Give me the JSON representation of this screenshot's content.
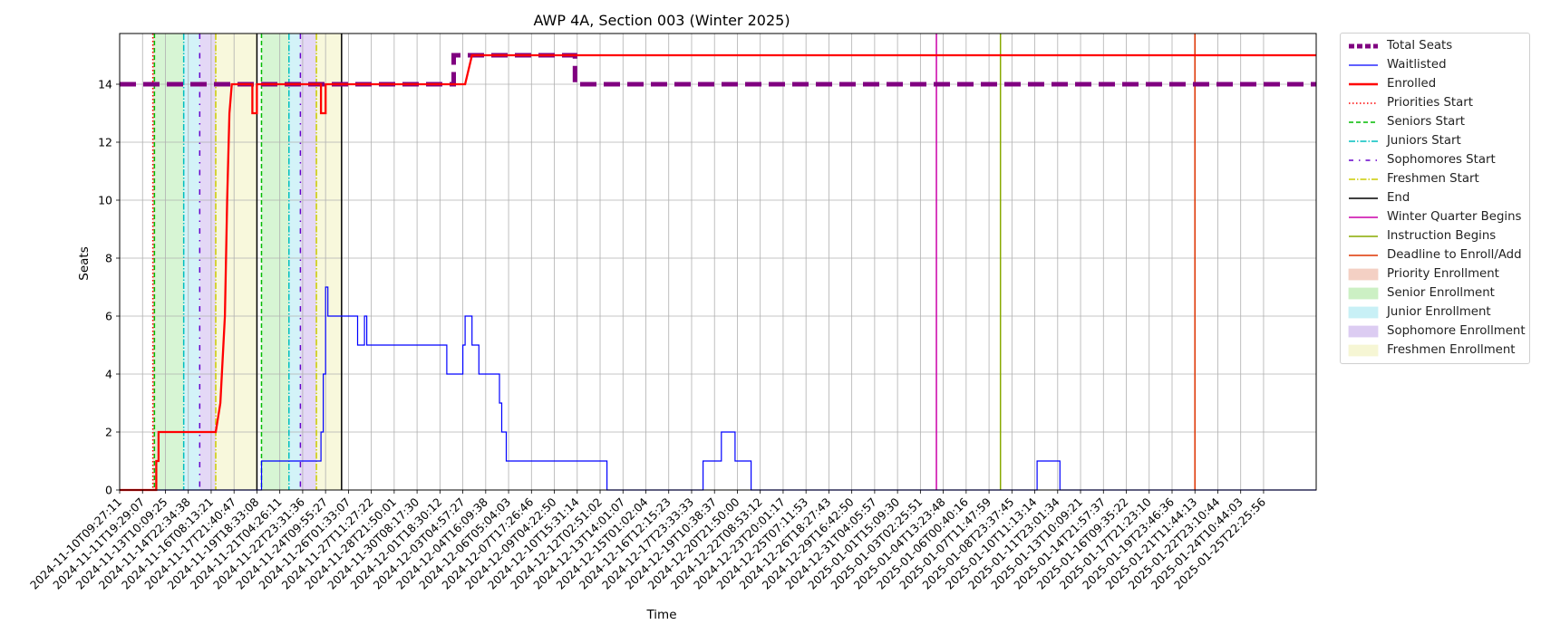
{
  "chart_data": {
    "type": "line",
    "title": "AWP 4A, Section 003 (Winter 2025)",
    "xlabel": "Time",
    "ylabel": "Seats",
    "ylim": [
      0,
      15.75
    ],
    "yticks": [
      0,
      2,
      4,
      6,
      8,
      10,
      12,
      14
    ],
    "grid": true,
    "legend_position": "outside-right",
    "x_ticks": [
      "2024-11-10T09:27:11",
      "2024-11-11T19:29:07",
      "2024-11-13T10:09:25",
      "2024-11-14T22:34:38",
      "2024-11-16T08:13:21",
      "2024-11-17T21:40:47",
      "2024-11-19T18:33:08",
      "2024-11-21T04:26:11",
      "2024-11-22T23:31:36",
      "2024-11-24T09:55:27",
      "2024-11-26T01:33:07",
      "2024-11-27T11:27:22",
      "2024-11-28T21:50:01",
      "2024-11-30T08:17:30",
      "2024-12-01T18:30:12",
      "2024-12-03T04:57:27",
      "2024-12-04T16:09:38",
      "2024-12-06T05:04:03",
      "2024-12-07T17:26:46",
      "2024-12-09T04:22:50",
      "2024-12-10T15:31:14",
      "2024-12-12T02:51:02",
      "2024-12-13T14:01:07",
      "2024-12-15T01:02:04",
      "2024-12-16T12:15:23",
      "2024-12-17T23:33:33",
      "2024-12-19T10:38:37",
      "2024-12-20T21:50:00",
      "2024-12-22T08:53:12",
      "2024-12-23T20:01:17",
      "2024-12-25T07:11:53",
      "2024-12-26T18:27:43",
      "2024-12-29T16:42:50",
      "2024-12-31T04:05:57",
      "2025-01-01T15:09:30",
      "2025-01-03T02:25:51",
      "2025-01-04T13:23:48",
      "2025-01-06T00:40:16",
      "2025-01-07T11:47:59",
      "2025-01-08T23:37:45",
      "2025-01-10T11:13:14",
      "2025-01-11T23:01:34",
      "2025-01-13T10:09:21",
      "2025-01-14T21:57:37",
      "2025-01-16T09:35:22",
      "2025-01-17T21:23:10",
      "2025-01-19T23:46:36",
      "2025-01-21T11:44:13",
      "2025-01-22T23:10:44",
      "2025-01-24T10:44:03",
      "2025-01-25T22:25:56"
    ],
    "series": [
      {
        "name": "Total Seats",
        "color": "#800080",
        "style": "dashed-thick",
        "points": [
          [
            0,
            14
          ],
          [
            14.6,
            14
          ],
          [
            14.6,
            15
          ],
          [
            19.9,
            15
          ],
          [
            19.9,
            14
          ],
          [
            52.3,
            14
          ]
        ]
      },
      {
        "name": "Waitlisted",
        "color": "#0000ff",
        "style": "solid-thin",
        "points": [
          [
            0,
            0
          ],
          [
            6.2,
            0
          ],
          [
            6.2,
            1
          ],
          [
            8.8,
            1
          ],
          [
            8.8,
            2
          ],
          [
            8.9,
            2
          ],
          [
            8.9,
            4
          ],
          [
            9.0,
            4
          ],
          [
            9.0,
            7
          ],
          [
            9.1,
            7
          ],
          [
            9.1,
            6
          ],
          [
            10.4,
            6
          ],
          [
            10.4,
            5
          ],
          [
            10.7,
            5
          ],
          [
            10.7,
            6
          ],
          [
            10.8,
            6
          ],
          [
            10.8,
            5
          ],
          [
            14.3,
            5
          ],
          [
            14.3,
            4
          ],
          [
            15.0,
            4
          ],
          [
            15.0,
            5
          ],
          [
            15.1,
            5
          ],
          [
            15.1,
            6
          ],
          [
            15.4,
            6
          ],
          [
            15.4,
            5
          ],
          [
            15.7,
            5
          ],
          [
            15.7,
            4
          ],
          [
            16.6,
            4
          ],
          [
            16.6,
            3
          ],
          [
            16.7,
            3
          ],
          [
            16.7,
            2
          ],
          [
            16.9,
            2
          ],
          [
            16.9,
            1
          ],
          [
            21.3,
            1
          ],
          [
            21.3,
            0
          ],
          [
            25.5,
            0
          ],
          [
            25.5,
            1
          ],
          [
            26.3,
            1
          ],
          [
            26.3,
            2
          ],
          [
            26.9,
            2
          ],
          [
            26.9,
            1
          ],
          [
            27.6,
            1
          ],
          [
            27.6,
            0
          ],
          [
            40.1,
            0
          ],
          [
            40.1,
            1
          ],
          [
            41.1,
            1
          ],
          [
            41.1,
            0
          ],
          [
            52.3,
            0
          ]
        ]
      },
      {
        "name": "Enrolled",
        "color": "#ff0000",
        "style": "solid",
        "points": [
          [
            0,
            0
          ],
          [
            1.6,
            0
          ],
          [
            1.6,
            1
          ],
          [
            1.7,
            1
          ],
          [
            1.7,
            2
          ],
          [
            4.2,
            2
          ],
          [
            4.4,
            3
          ],
          [
            4.6,
            6
          ],
          [
            4.7,
            10
          ],
          [
            4.8,
            13
          ],
          [
            4.9,
            14
          ],
          [
            5.8,
            14
          ],
          [
            5.8,
            13
          ],
          [
            6.0,
            13
          ],
          [
            6.0,
            14
          ],
          [
            8.8,
            14
          ],
          [
            8.8,
            13
          ],
          [
            9.0,
            13
          ],
          [
            9.0,
            14
          ],
          [
            15.1,
            14
          ],
          [
            15.4,
            15
          ],
          [
            52.3,
            15
          ]
        ]
      }
    ],
    "vertical_markers": [
      {
        "name": "Priorities Start",
        "x": 1.45,
        "color": "#ff0000",
        "style": "dotted"
      },
      {
        "name": "Seniors Start",
        "x": 1.52,
        "color": "#00bb00",
        "style": "dashed"
      },
      {
        "name": "Juniors Start",
        "x": 2.8,
        "color": "#00bfbf",
        "style": "dashdot"
      },
      {
        "name": "Sophomores Start",
        "x": 3.5,
        "color": "#6600cc",
        "style": "dashdotsparse"
      },
      {
        "name": "Freshmen Start",
        "x": 4.2,
        "color": "#cccc00",
        "style": "dashdot"
      },
      {
        "name": "End",
        "x": 6.0,
        "color": "#000000",
        "style": "solid"
      },
      {
        "name": "Seniors Start",
        "x": 6.2,
        "color": "#00bb00",
        "style": "dashed"
      },
      {
        "name": "Juniors Start",
        "x": 7.4,
        "color": "#00bfbf",
        "style": "dashdot"
      },
      {
        "name": "Sophomores Start",
        "x": 7.9,
        "color": "#6600cc",
        "style": "dashdotsparse"
      },
      {
        "name": "Freshmen Start",
        "x": 8.6,
        "color": "#cccc00",
        "style": "dashdot"
      },
      {
        "name": "End",
        "x": 9.7,
        "color": "#000000",
        "style": "solid"
      },
      {
        "name": "Winter Quarter Begins",
        "x": 35.7,
        "color": "#cc00aa",
        "style": "solid"
      },
      {
        "name": "Instruction Begins",
        "x": 38.5,
        "color": "#88aa00",
        "style": "solid"
      },
      {
        "name": "Deadline to Enroll/Add",
        "x": 47.0,
        "color": "#dd3300",
        "style": "solid"
      }
    ],
    "shaded_regions": [
      {
        "name": "Priority Enrollment",
        "x0": 1.45,
        "x1": 1.52,
        "color": "#f4b8a8"
      },
      {
        "name": "Senior Enrollment",
        "x0": 1.52,
        "x1": 2.8,
        "color": "#b6ecb0"
      },
      {
        "name": "Junior Enrollment",
        "x0": 2.8,
        "x1": 3.5,
        "color": "#aeeaf2"
      },
      {
        "name": "Sophomore Enrollment",
        "x0": 3.5,
        "x1": 4.2,
        "color": "#cdb8ee"
      },
      {
        "name": "Freshmen Enrollment",
        "x0": 4.2,
        "x1": 6.0,
        "color": "#f3f3c0"
      },
      {
        "name": "Senior Enrollment",
        "x0": 6.2,
        "x1": 7.4,
        "color": "#b6ecb0"
      },
      {
        "name": "Junior Enrollment",
        "x0": 7.4,
        "x1": 7.9,
        "color": "#aeeaf2"
      },
      {
        "name": "Sophomore Enrollment",
        "x0": 7.9,
        "x1": 8.6,
        "color": "#cdb8ee"
      },
      {
        "name": "Freshmen Enrollment",
        "x0": 8.6,
        "x1": 9.7,
        "color": "#f3f3c0"
      }
    ],
    "legend": [
      {
        "label": "Total Seats",
        "kind": "line",
        "color": "#800080",
        "dash": "6,3",
        "width": 5
      },
      {
        "label": "Waitlisted",
        "kind": "line",
        "color": "#0000ff",
        "dash": "",
        "width": 1.2
      },
      {
        "label": "Enrolled",
        "kind": "line",
        "color": "#ff0000",
        "dash": "",
        "width": 2.5
      },
      {
        "label": "Priorities Start",
        "kind": "line",
        "color": "#ff0000",
        "dash": "1.5,2.5",
        "width": 1.5
      },
      {
        "label": "Seniors Start",
        "kind": "line",
        "color": "#00bb00",
        "dash": "5,3",
        "width": 1.5
      },
      {
        "label": "Juniors Start",
        "kind": "line",
        "color": "#00bfbf",
        "dash": "7,2,1.5,2",
        "width": 1.5
      },
      {
        "label": "Sophomores Start",
        "kind": "line",
        "color": "#6600cc",
        "dash": "5,6,1.5,6",
        "width": 1.5
      },
      {
        "label": "Freshmen Start",
        "kind": "line",
        "color": "#cccc00",
        "dash": "7,2,1.5,2",
        "width": 1.5
      },
      {
        "label": "End",
        "kind": "line",
        "color": "#000000",
        "dash": "",
        "width": 1.5
      },
      {
        "label": "Winter Quarter Begins",
        "kind": "line",
        "color": "#cc00aa",
        "dash": "",
        "width": 1.5
      },
      {
        "label": "Instruction Begins",
        "kind": "line",
        "color": "#88aa00",
        "dash": "",
        "width": 1.5
      },
      {
        "label": "Deadline to Enroll/Add",
        "kind": "line",
        "color": "#dd3300",
        "dash": "",
        "width": 1.5
      },
      {
        "label": "Priority Enrollment",
        "kind": "patch",
        "color": "#f4d0c4"
      },
      {
        "label": "Senior Enrollment",
        "kind": "patch",
        "color": "#ccf0c4"
      },
      {
        "label": "Junior Enrollment",
        "kind": "patch",
        "color": "#c8f0f6"
      },
      {
        "label": "Sophomore Enrollment",
        "kind": "patch",
        "color": "#dcccf2"
      },
      {
        "label": "Freshmen Enrollment",
        "kind": "patch",
        "color": "#f6f6d4"
      }
    ]
  }
}
